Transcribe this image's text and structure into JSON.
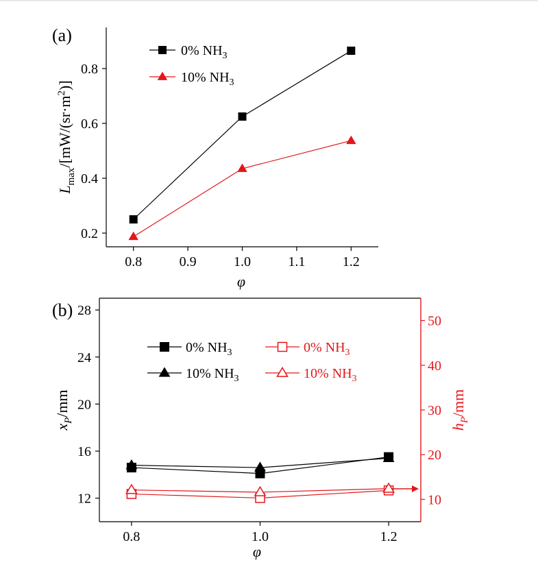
{
  "chart_data": [
    {
      "type": "line",
      "panel_label": "(a)",
      "xlabel": "φ",
      "ylabel_main": "L",
      "ylabel_sub": "max",
      "ylabel_unit_pre": "/[mW/(sr·m",
      "ylabel_unit_sup": "2",
      "ylabel_unit_post": ")]",
      "xlim": [
        0.75,
        1.25
      ],
      "ylim": [
        0.15,
        0.95
      ],
      "xticks": [
        0.8,
        0.9,
        1.0,
        1.1,
        1.2
      ],
      "xticklabels": [
        "0.8",
        "0.9",
        "1.0",
        "1.1",
        "1.2"
      ],
      "yticks": [
        0.2,
        0.4,
        0.6,
        0.8
      ],
      "yticklabels": [
        "0.2",
        "0.4",
        "0.6",
        "0.8"
      ],
      "x": [
        0.8,
        1.0,
        1.2
      ],
      "legend_position": "top-left",
      "series": [
        {
          "name_main": "0% NH",
          "name_sub": "3",
          "values": [
            0.25,
            0.625,
            0.865
          ],
          "color": "#000000",
          "marker": "square"
        },
        {
          "name_main": "10% NH",
          "name_sub": "3",
          "values": [
            0.187,
            0.435,
            0.537
          ],
          "color": "#e3161b",
          "marker": "triangle"
        }
      ]
    },
    {
      "type": "line",
      "panel_label": "(b)",
      "xlabel": "φ",
      "ylabel_left_main": "x",
      "ylabel_left_sub": "P",
      "ylabel_left_unit": "/mm",
      "ylabel_right_main": "h",
      "ylabel_right_sub": "P",
      "ylabel_right_unit": "/mm",
      "xlim": [
        0.75,
        1.25
      ],
      "ylim_left": [
        10,
        29
      ],
      "ylim_right": [
        5,
        55
      ],
      "xticks": [
        0.8,
        1.0,
        1.2
      ],
      "xticklabels": [
        "0.8",
        "1.0",
        "1.2"
      ],
      "yticks_left": [
        12,
        16,
        20,
        24,
        28
      ],
      "yticklabels_left": [
        "12",
        "16",
        "20",
        "24",
        "28"
      ],
      "yticks_right": [
        10,
        20,
        30,
        40,
        50
      ],
      "yticklabels_right": [
        "10",
        "20",
        "30",
        "40",
        "50"
      ],
      "x": [
        0.8,
        1.0,
        1.2
      ],
      "legend_position": "top",
      "series": [
        {
          "name_main": "0% NH",
          "name_sub": "3",
          "axis": "left",
          "values": [
            14.6,
            14.1,
            15.5
          ],
          "color": "#000000",
          "marker": "square",
          "filled": true
        },
        {
          "name_main": "10% NH",
          "name_sub": "3",
          "axis": "left",
          "values": [
            14.8,
            14.6,
            15.4
          ],
          "color": "#000000",
          "marker": "triangle",
          "filled": true
        },
        {
          "name_main": "0% NH",
          "name_sub": "3",
          "axis": "right",
          "values": [
            11.2,
            10.3,
            12.0
          ],
          "color": "#e3161b",
          "marker": "square",
          "filled": false
        },
        {
          "name_main": "10% NH",
          "name_sub": "3",
          "axis": "right",
          "values": [
            12.1,
            11.6,
            12.4
          ],
          "color": "#e3161b",
          "marker": "triangle",
          "filled": false
        }
      ]
    }
  ]
}
